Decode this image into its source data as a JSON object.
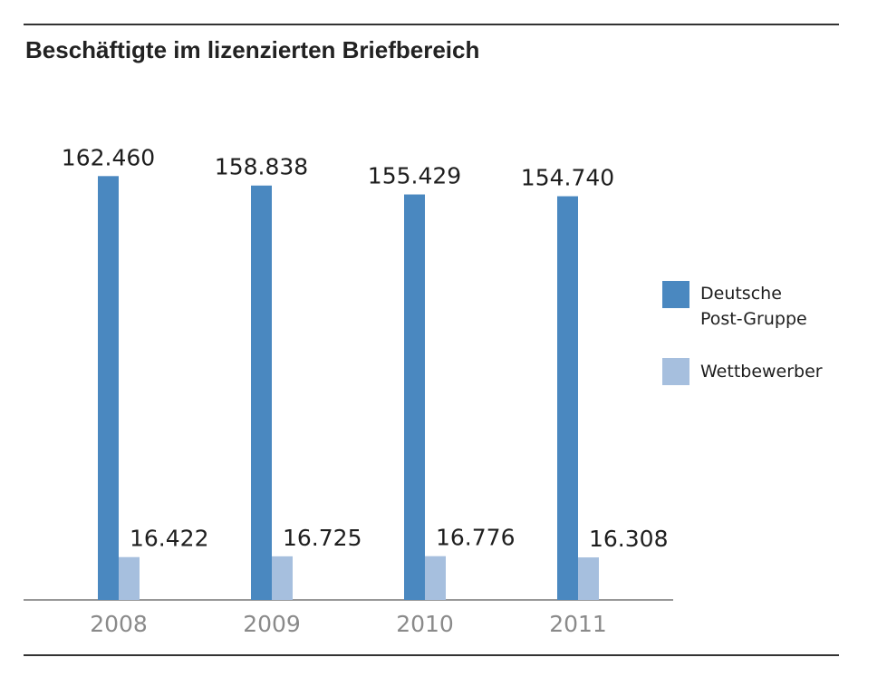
{
  "chart_data": {
    "type": "bar",
    "title": "Beschäftigte im lizenzierten Briefbereich",
    "categories": [
      "2008",
      "2009",
      "2010",
      "2011"
    ],
    "series": [
      {
        "name": "Deutsche Post-Gruppe",
        "legend_lines": [
          "Deutsche",
          "Post-Gruppe"
        ],
        "color": "#4a88c0",
        "values": [
          162460,
          158838,
          155429,
          154740
        ],
        "labels": [
          "162.460",
          "158.838",
          "155.429",
          "154.740"
        ]
      },
      {
        "name": "Wettbewerber",
        "legend_lines": [
          "Wettbewerber"
        ],
        "color": "#a6bfde",
        "values": [
          16422,
          16725,
          16776,
          16308
        ],
        "labels": [
          "16.422",
          "16.725",
          "16.776",
          "16.308"
        ]
      }
    ],
    "ylim": [
      0,
      165000
    ],
    "grid": false,
    "legend_position": "right"
  }
}
